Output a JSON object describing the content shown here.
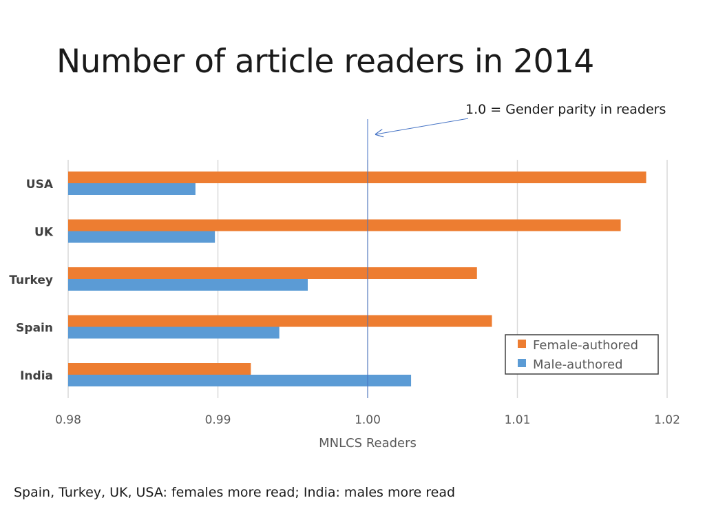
{
  "title": "Number of article readers in 2014",
  "annotation": "1.0 = Gender parity in readers",
  "footnote": "Spain, Turkey, UK, USA: females more read; India: males more read",
  "chart_data": {
    "type": "bar",
    "orientation": "horizontal",
    "categories": [
      "USA",
      "UK",
      "Turkey",
      "Spain",
      "India"
    ],
    "series": [
      {
        "name": "Female-authored",
        "color": "#ed7d31",
        "values": [
          1.0186,
          1.0169,
          1.0073,
          1.0083,
          0.9922
        ]
      },
      {
        "name": "Male-authored",
        "color": "#5b9bd5",
        "values": [
          0.9885,
          0.9898,
          0.996,
          0.9941,
          1.0029
        ]
      }
    ],
    "xlabel": "MNLCS Readers",
    "xlim": [
      0.98,
      1.02
    ],
    "xticks": [
      "0.98",
      "0.99",
      "1.00",
      "1.01",
      "1.02"
    ],
    "reference_line": 1.0,
    "grid": true,
    "legend_position": "bottom-right"
  }
}
